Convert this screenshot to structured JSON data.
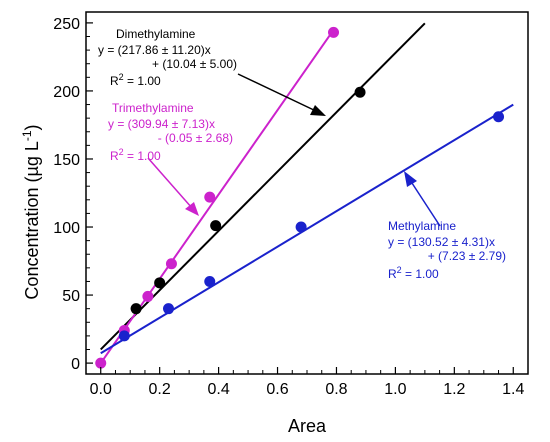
{
  "chart_data": {
    "type": "scatter",
    "xlabel": "Area",
    "ylabel": "Concentration (µg L",
    "ylabel_unit_sup": "-1",
    "ylabel_close": ")",
    "xlim": [
      -0.05,
      1.45
    ],
    "ylim": [
      -8,
      258
    ],
    "x_ticks": [
      0.0,
      0.2,
      0.4,
      0.6,
      0.8,
      1.0,
      1.2,
      1.4
    ],
    "x_tick_labels": [
      "0.0",
      "0.2",
      "0.4",
      "0.6",
      "0.8",
      "1.0",
      "1.2",
      "1.4"
    ],
    "y_ticks": [
      0,
      50,
      100,
      150,
      200,
      250
    ],
    "y_tick_labels": [
      "0",
      "50",
      "100",
      "150",
      "200",
      "250"
    ],
    "grid": false,
    "series": [
      {
        "name": "Dimethylamine",
        "color": "#000000",
        "x": [
          0.12,
          0.2,
          0.39,
          0.88
        ],
        "y": [
          40,
          59,
          101,
          199
        ],
        "fit": {
          "slope": 217.86,
          "intercept": 10.04,
          "x_range": [
            0.0,
            1.1
          ]
        },
        "eq_line1": "y = (217.86 ± 11.20)x",
        "eq_line2": "+ (10.04 ± 5.00)",
        "r2_label": "R",
        "r2_sup": "2",
        "r2_value": " = 1.00"
      },
      {
        "name": "Trimethylamine",
        "color": "#cc22cc",
        "x": [
          0.0,
          0.08,
          0.16,
          0.24,
          0.37,
          0.79
        ],
        "y": [
          0,
          24,
          49,
          73,
          122,
          243
        ],
        "fit": {
          "slope": 309.94,
          "intercept": -0.05,
          "x_range": [
            0.0,
            0.79
          ]
        },
        "eq_line1": "y = (309.94 ± 7.13)x",
        "eq_line2": "- (0.05 ± 2.68)",
        "r2_label": "R",
        "r2_sup": "2",
        "r2_value": " = 1.00"
      },
      {
        "name": "Methylamine",
        "color": "#1a22cc",
        "x": [
          0.08,
          0.23,
          0.37,
          0.68,
          1.35
        ],
        "y": [
          20,
          40,
          60,
          100,
          181
        ],
        "fit": {
          "slope": 130.52,
          "intercept": 7.23,
          "x_range": [
            0.0,
            1.4
          ]
        },
        "eq_line1": "y = (130.52 ± 4.31)x",
        "eq_line2": "+ (7.23 ± 2.79)",
        "r2_label": "R",
        "r2_sup": "2",
        "r2_value": " = 1.00"
      }
    ]
  }
}
